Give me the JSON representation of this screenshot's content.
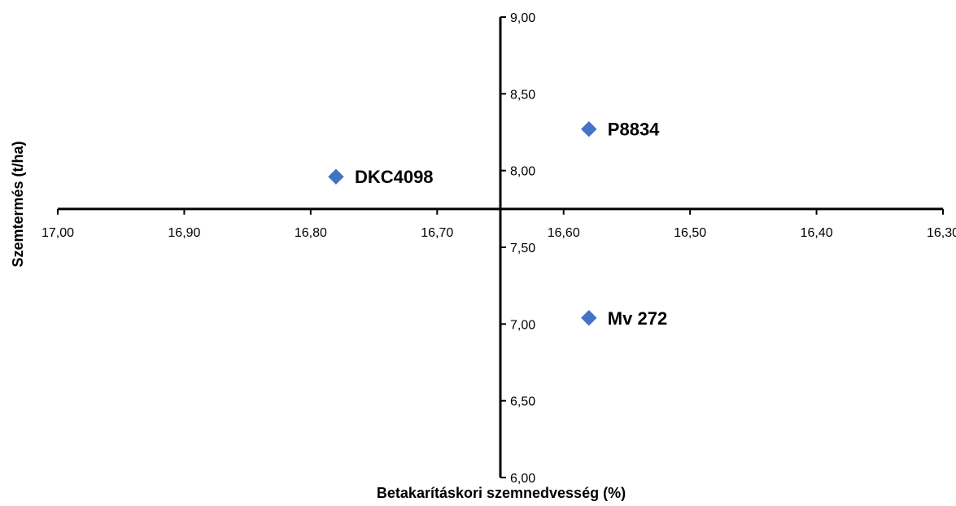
{
  "chart_data": {
    "type": "scatter",
    "title": "",
    "xlabel": "Betakarításkori szemnedvesség (%)",
    "ylabel": "Szemtermés (t/ha)",
    "xlim": [
      17.0,
      16.3
    ],
    "ylim": [
      6.0,
      9.0
    ],
    "x_reversed": true,
    "x_axis_crosses_y_at": 7.75,
    "y_axis_crosses_x_at": 16.65,
    "x_ticks": [
      "17,00",
      "16,90",
      "16,80",
      "16,70",
      "16,60",
      "16,50",
      "16,40",
      "16,30"
    ],
    "x_tick_values": [
      17.0,
      16.9,
      16.8,
      16.7,
      16.6,
      16.5,
      16.4,
      16.3
    ],
    "y_ticks": [
      "6,00",
      "6,50",
      "7,00",
      "7,50",
      "8,00",
      "8,50",
      "9,00"
    ],
    "y_tick_values": [
      6.0,
      6.5,
      7.0,
      7.5,
      8.0,
      8.5,
      9.0
    ],
    "marker_color": "#4472C4",
    "points": [
      {
        "label": "DKC4098",
        "x": 16.78,
        "y": 7.96
      },
      {
        "label": "P8834",
        "x": 16.58,
        "y": 8.27
      },
      {
        "label": "Mv 272",
        "x": 16.58,
        "y": 7.04
      }
    ],
    "grid": false,
    "legend": "none"
  }
}
